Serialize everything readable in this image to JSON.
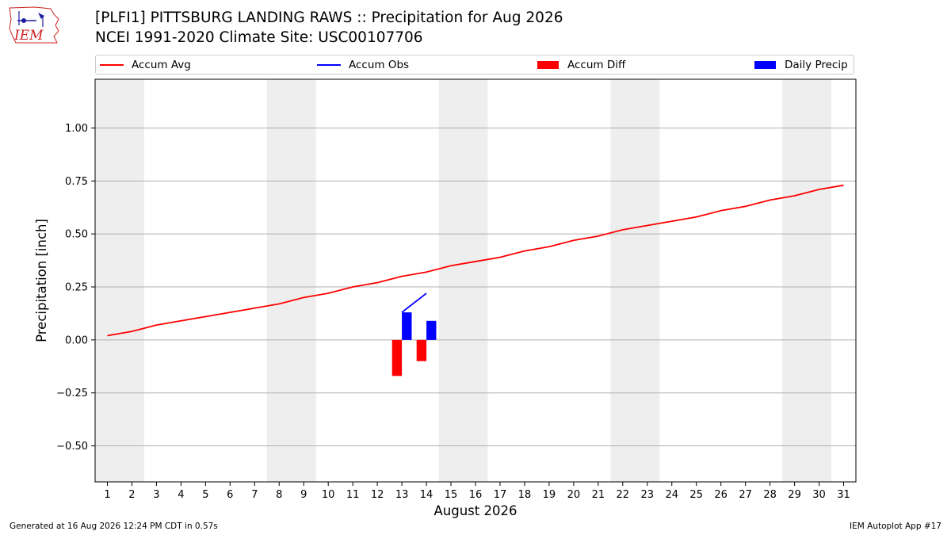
{
  "header": {
    "title_line1": "[PLFI1] PITTSBURG LANDING RAWS :: Precipitation for Aug 2026",
    "title_line2": "NCEI 1991-2020 Climate Site: USC00107706",
    "logo_text": "IEM"
  },
  "legend": {
    "items": [
      {
        "label": "Accum Avg",
        "color": "#ff0000",
        "kind": "line"
      },
      {
        "label": "Accum Obs",
        "color": "#0000ff",
        "kind": "line"
      },
      {
        "label": "Accum Diff",
        "color": "#ff0000",
        "kind": "box"
      },
      {
        "label": "Daily Precip",
        "color": "#0000ff",
        "kind": "box"
      }
    ]
  },
  "chart_data": {
    "type": "line",
    "xlabel": "August 2026",
    "ylabel": "Precipitation [inch]",
    "x": [
      1,
      2,
      3,
      4,
      5,
      6,
      7,
      8,
      9,
      10,
      11,
      12,
      13,
      14,
      15,
      16,
      17,
      18,
      19,
      20,
      21,
      22,
      23,
      24,
      25,
      26,
      27,
      28,
      29,
      30,
      31
    ],
    "xlim": [
      0.5,
      31.5
    ],
    "ylim": [
      -0.67,
      1.23
    ],
    "yticks": [
      -0.5,
      -0.25,
      0.0,
      0.25,
      0.5,
      0.75,
      1.0
    ],
    "ytick_labels": [
      "−0.50",
      "−0.25",
      "0.00",
      "0.25",
      "0.50",
      "0.75",
      "1.00"
    ],
    "grid": "horizontal",
    "weekend_shading_days": [
      [
        1,
        2
      ],
      [
        8,
        9
      ],
      [
        15,
        16
      ],
      [
        22,
        23
      ],
      [
        29,
        30
      ]
    ],
    "series": [
      {
        "name": "Accum Avg",
        "kind": "line",
        "color": "#ff0000",
        "x": [
          1,
          2,
          3,
          4,
          5,
          6,
          7,
          8,
          9,
          10,
          11,
          12,
          13,
          14,
          15,
          16,
          17,
          18,
          19,
          20,
          21,
          22,
          23,
          24,
          25,
          26,
          27,
          28,
          29,
          30,
          31
        ],
        "values": [
          0.02,
          0.04,
          0.07,
          0.09,
          0.11,
          0.13,
          0.15,
          0.17,
          0.2,
          0.22,
          0.25,
          0.27,
          0.3,
          0.32,
          0.35,
          0.37,
          0.39,
          0.42,
          0.44,
          0.47,
          0.49,
          0.52,
          0.54,
          0.56,
          0.58,
          0.61,
          0.63,
          0.66,
          0.68,
          0.71,
          0.73
        ]
      },
      {
        "name": "Accum Obs",
        "kind": "line",
        "color": "#0000ff",
        "x": [
          13,
          14
        ],
        "values": [
          0.13,
          0.22
        ]
      },
      {
        "name": "Accum Diff",
        "kind": "bar",
        "color": "#ff0000",
        "x": [
          13,
          14
        ],
        "values": [
          -0.17,
          -0.1
        ]
      },
      {
        "name": "Daily Precip",
        "kind": "bar",
        "color": "#0000ff",
        "x": [
          13,
          14
        ],
        "values": [
          0.13,
          0.09
        ]
      }
    ]
  },
  "footer": {
    "left": "Generated at 16 Aug 2026 12:24 PM CDT in 0.57s",
    "right": "IEM Autoplot App #17"
  }
}
